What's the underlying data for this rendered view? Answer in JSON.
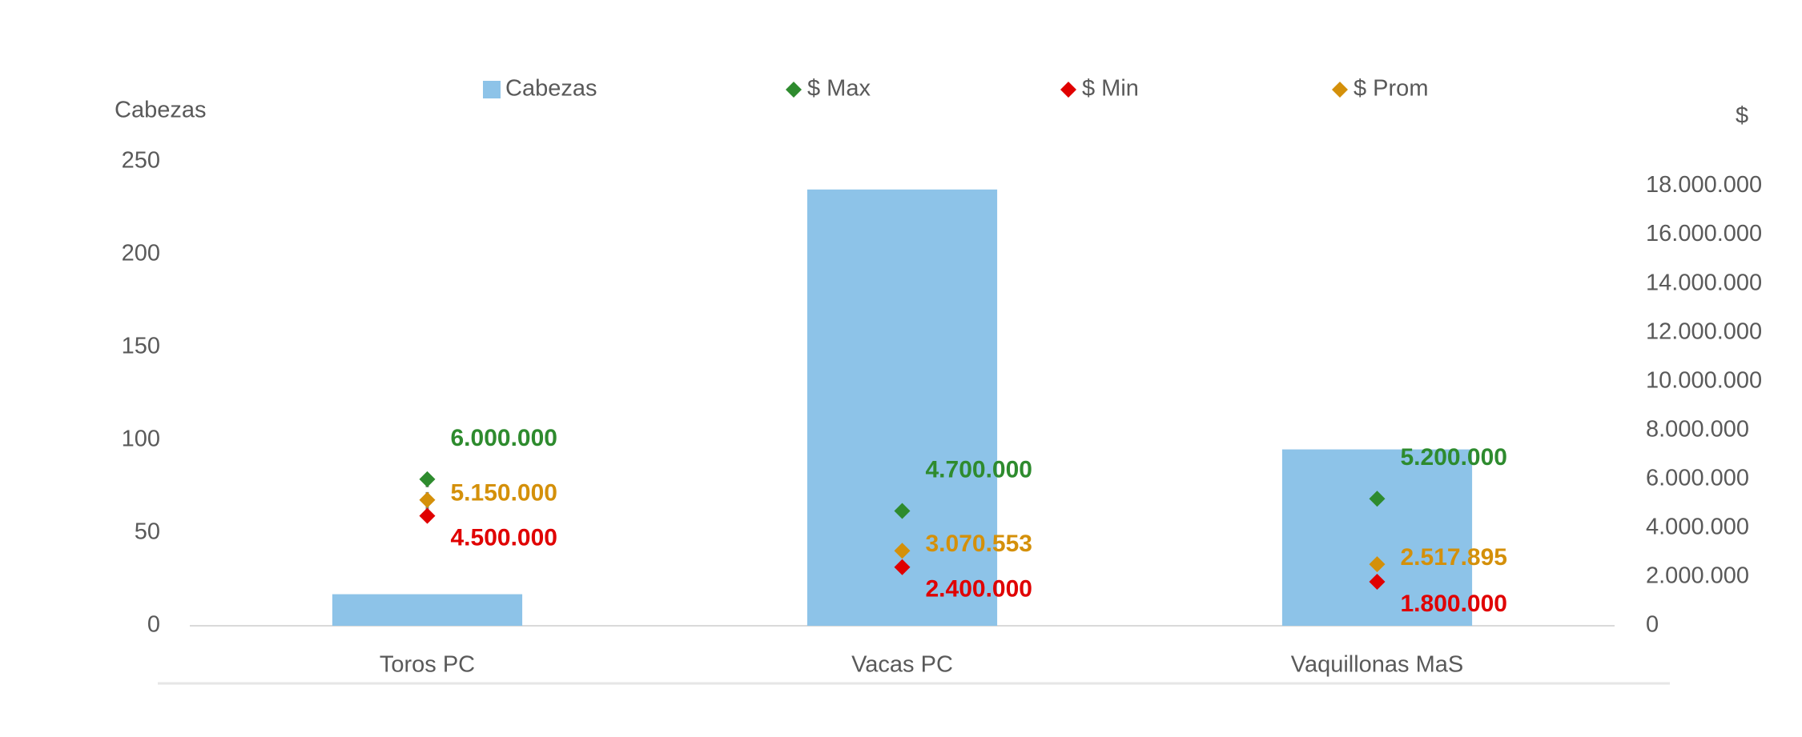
{
  "chart_data": {
    "type": "bar",
    "y_axis_title": "Cabezas",
    "y2_axis_title": "$",
    "categories": [
      "Toros PC",
      "Vacas PC",
      "Vaquillonas MaS"
    ],
    "series": [
      {
        "name": "Cabezas",
        "type": "bar",
        "color": "#8dc3e8",
        "values": [
          17,
          235,
          95
        ]
      },
      {
        "name": "$ Max",
        "type": "scatter",
        "axis": "y2",
        "color": "#2e8b2e",
        "values": [
          6000000,
          4700000,
          5200000
        ],
        "value_labels": [
          "6.000.000",
          "4.700.000",
          "5.200.000"
        ]
      },
      {
        "name": "$ Min",
        "type": "scatter",
        "axis": "y2",
        "color": "#e00000",
        "values": [
          4500000,
          2400000,
          1800000
        ],
        "value_labels": [
          "4.500.000",
          "2.400.000",
          "1.800.000"
        ]
      },
      {
        "name": "$ Prom",
        "type": "scatter",
        "axis": "y2",
        "color": "#d4900a",
        "values": [
          5150000,
          3070553,
          2517895
        ],
        "value_labels": [
          "5.150.000",
          "3.070.553",
          "2.517.895"
        ]
      }
    ],
    "ylim": [
      0,
      250
    ],
    "yticks": [
      0,
      50,
      100,
      150,
      200,
      250
    ],
    "y2lim": [
      0,
      19000000
    ],
    "y2ticks": [
      0,
      {
        "value": 2000000,
        "label": "2.000.000"
      },
      {
        "value": 4000000,
        "label": "4.000.000"
      },
      {
        "value": 6000000,
        "label": "6.000.000"
      },
      {
        "value": 8000000,
        "label": "8.000.000"
      },
      {
        "value": 10000000,
        "label": "10.000.000"
      },
      {
        "value": 12000000,
        "label": "12.000.000"
      },
      {
        "value": 14000000,
        "label": "14.000.000"
      },
      {
        "value": 16000000,
        "label": "16.000.000"
      },
      {
        "value": 18000000,
        "label": "18.000.000"
      }
    ],
    "high_low_lines": true,
    "grid": false
  }
}
